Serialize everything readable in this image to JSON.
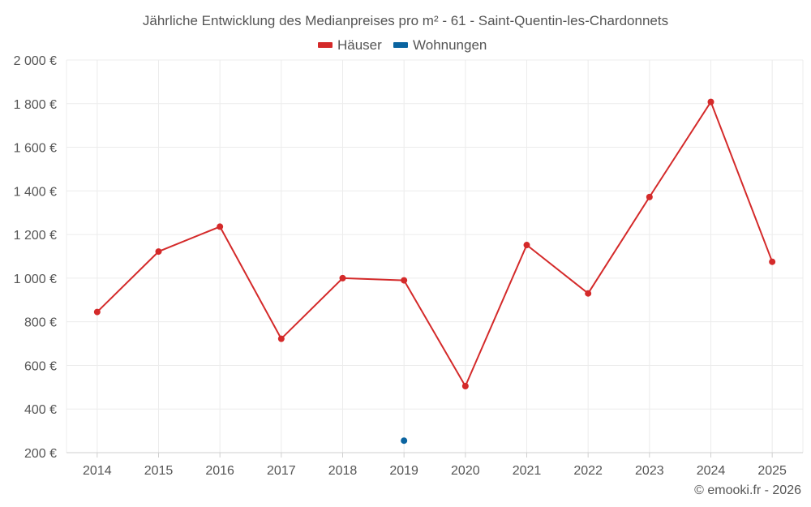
{
  "chart_data": {
    "type": "line",
    "title": "Jährliche Entwicklung des Medianpreises pro m² - 61 - Saint-Quentin-les-Chardonnets",
    "categories": [
      "2014",
      "2015",
      "2016",
      "2017",
      "2018",
      "2019",
      "2020",
      "2021",
      "2022",
      "2023",
      "2024",
      "2025"
    ],
    "ylim": [
      200,
      2000
    ],
    "yticks": [
      200,
      400,
      600,
      800,
      1000,
      1200,
      1400,
      1600,
      1800,
      2000
    ],
    "ytick_labels": [
      "200 €",
      "400 €",
      "600 €",
      "800 €",
      "1 000 €",
      "1 200 €",
      "1 400 €",
      "1 600 €",
      "1 800 €",
      "2 000 €"
    ],
    "grid": true,
    "legend_position": "top-center",
    "series": [
      {
        "name": "Häuser",
        "color": "#d42a2a",
        "values": [
          845,
          1122,
          1236,
          722,
          1000,
          990,
          505,
          1152,
          930,
          1372,
          1808,
          1075
        ]
      },
      {
        "name": "Wohnungen",
        "color": "#0b64a0",
        "values": [
          null,
          null,
          null,
          null,
          null,
          255,
          null,
          null,
          null,
          null,
          null,
          null
        ]
      }
    ]
  },
  "credit": "© emooki.fr - 2026"
}
